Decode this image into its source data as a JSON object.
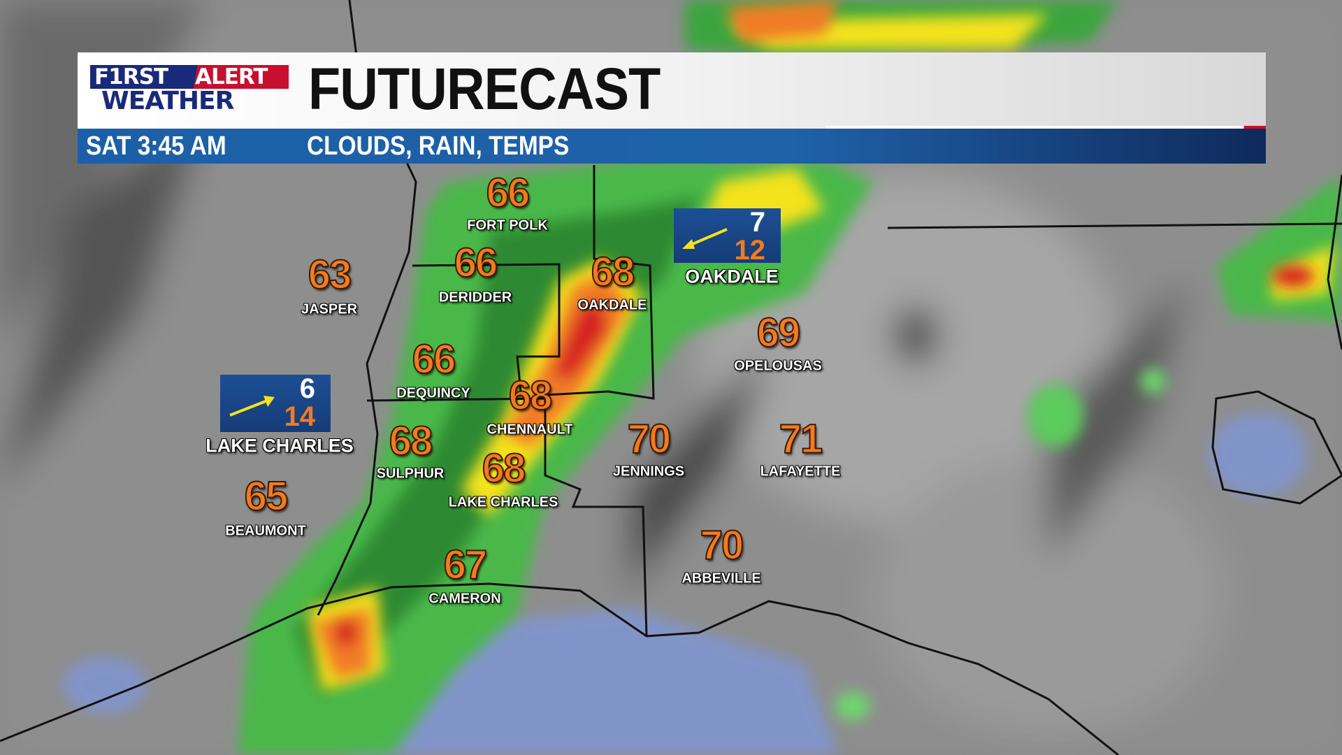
{
  "header": {
    "logo_text": [
      "F1RST",
      "ALERT",
      "WEATHER"
    ],
    "title": "FUTURECAST",
    "time": "SAT  3:45 AM",
    "subtitle": "CLOUDS, RAIN, TEMPS"
  },
  "colors": {
    "temp": "#f47a1f",
    "bar": "#1b5fa8",
    "logo_blue": "#1a2a7a",
    "logo_red": "#c8102e"
  },
  "temps": [
    {
      "city": "FORT POLK",
      "temp": "66"
    },
    {
      "city": "DERIDDER",
      "temp": "66"
    },
    {
      "city": "OAKDALE",
      "temp": "68"
    },
    {
      "city": "JASPER",
      "temp": "63"
    },
    {
      "city": "OPELOUSAS",
      "temp": "69"
    },
    {
      "city": "DEQUINCY",
      "temp": "66"
    },
    {
      "city": "CHENNAULT",
      "temp": "68"
    },
    {
      "city": "SULPHUR",
      "temp": "68"
    },
    {
      "city": "JENNINGS",
      "temp": "70"
    },
    {
      "city": "LAFAYETTE",
      "temp": "71"
    },
    {
      "city": "LAKE CHARLES",
      "temp": "68"
    },
    {
      "city": "BEAUMONT",
      "temp": "65"
    },
    {
      "city": "CAMERON",
      "temp": "67"
    },
    {
      "city": "ABBEVILLE",
      "temp": "70"
    }
  ],
  "winds": [
    {
      "city": "OAKDALE",
      "speed": "7",
      "gust": "12",
      "direction_icon": "arrow-west-southwest-icon"
    },
    {
      "city": "LAKE CHARLES",
      "speed": "6",
      "gust": "14",
      "direction_icon": "arrow-east-northeast-icon"
    }
  ]
}
